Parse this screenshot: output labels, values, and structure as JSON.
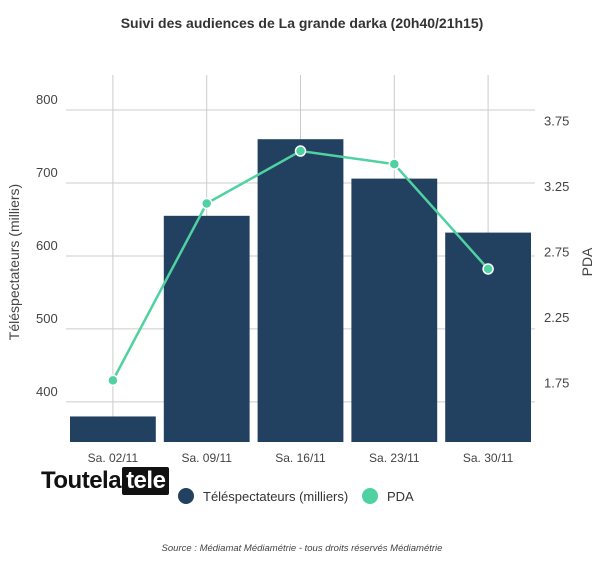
{
  "chart_data": {
    "type": "bar",
    "title": "Suivi des audiences de La grande darka (20h40/21h15)",
    "categories": [
      "Sa. 02/11",
      "Sa. 09/11",
      "Sa. 16/11",
      "Sa. 23/11",
      "Sa. 30/11"
    ],
    "series": [
      {
        "name": "Téléspectateurs (milliers)",
        "type": "bar",
        "axis": "left",
        "color": "#22405f",
        "values": [
          380,
          655,
          760,
          706,
          632
        ]
      },
      {
        "name": "PDA",
        "type": "line",
        "axis": "right",
        "color": "#4fd1a1",
        "values": [
          1.85,
          3.2,
          3.6,
          3.5,
          2.7
        ]
      }
    ],
    "ylabel": "Téléspectateurs (milliers)",
    "ylabel_right": "PDA",
    "y_ticks": [
      "400",
      "500",
      "600",
      "700",
      "800"
    ],
    "y_tick_values": [
      400,
      500,
      600,
      700,
      800
    ],
    "ylim": [
      345,
      848
    ],
    "y2_ticks": [
      "1.75",
      "2.25",
      "2.75",
      "3.25",
      "3.75"
    ],
    "y2_tick_values": [
      1.75,
      2.25,
      2.75,
      3.25,
      3.75
    ],
    "y2lim": [
      1.38,
      4.18
    ],
    "grid": true,
    "legend_position": "bottom"
  },
  "logo": {
    "part1": "Toutela",
    "part2": "tele"
  },
  "source": "Source : Médiamat Médiamétrie - tous droits réservés Médiamétrie"
}
